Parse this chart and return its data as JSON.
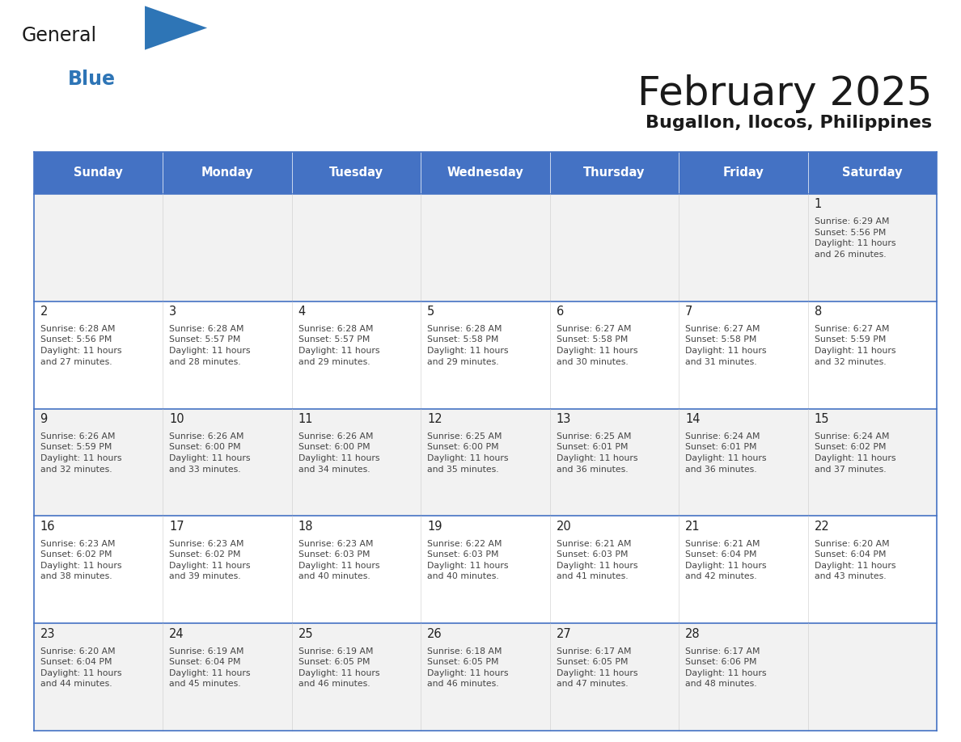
{
  "title": "February 2025",
  "subtitle": "Bugallon, Ilocos, Philippines",
  "days_of_week": [
    "Sunday",
    "Monday",
    "Tuesday",
    "Wednesday",
    "Thursday",
    "Friday",
    "Saturday"
  ],
  "header_bg": "#4472C4",
  "header_text": "#FFFFFF",
  "row_bg": [
    "#F2F2F2",
    "#FFFFFF",
    "#F2F2F2",
    "#FFFFFF",
    "#F2F2F2"
  ],
  "separator_color": "#4472C4",
  "cell_text_color": "#444444",
  "day_number_color": "#222222",
  "title_color": "#1a1a1a",
  "subtitle_color": "#1a1a1a",
  "logo_general_color": "#1a1a1a",
  "logo_blue_color": "#2E75B6",
  "calendar": [
    [
      {
        "day": null,
        "info": null
      },
      {
        "day": null,
        "info": null
      },
      {
        "day": null,
        "info": null
      },
      {
        "day": null,
        "info": null
      },
      {
        "day": null,
        "info": null
      },
      {
        "day": null,
        "info": null
      },
      {
        "day": 1,
        "info": "Sunrise: 6:29 AM\nSunset: 5:56 PM\nDaylight: 11 hours\nand 26 minutes."
      }
    ],
    [
      {
        "day": 2,
        "info": "Sunrise: 6:28 AM\nSunset: 5:56 PM\nDaylight: 11 hours\nand 27 minutes."
      },
      {
        "day": 3,
        "info": "Sunrise: 6:28 AM\nSunset: 5:57 PM\nDaylight: 11 hours\nand 28 minutes."
      },
      {
        "day": 4,
        "info": "Sunrise: 6:28 AM\nSunset: 5:57 PM\nDaylight: 11 hours\nand 29 minutes."
      },
      {
        "day": 5,
        "info": "Sunrise: 6:28 AM\nSunset: 5:58 PM\nDaylight: 11 hours\nand 29 minutes."
      },
      {
        "day": 6,
        "info": "Sunrise: 6:27 AM\nSunset: 5:58 PM\nDaylight: 11 hours\nand 30 minutes."
      },
      {
        "day": 7,
        "info": "Sunrise: 6:27 AM\nSunset: 5:58 PM\nDaylight: 11 hours\nand 31 minutes."
      },
      {
        "day": 8,
        "info": "Sunrise: 6:27 AM\nSunset: 5:59 PM\nDaylight: 11 hours\nand 32 minutes."
      }
    ],
    [
      {
        "day": 9,
        "info": "Sunrise: 6:26 AM\nSunset: 5:59 PM\nDaylight: 11 hours\nand 32 minutes."
      },
      {
        "day": 10,
        "info": "Sunrise: 6:26 AM\nSunset: 6:00 PM\nDaylight: 11 hours\nand 33 minutes."
      },
      {
        "day": 11,
        "info": "Sunrise: 6:26 AM\nSunset: 6:00 PM\nDaylight: 11 hours\nand 34 minutes."
      },
      {
        "day": 12,
        "info": "Sunrise: 6:25 AM\nSunset: 6:00 PM\nDaylight: 11 hours\nand 35 minutes."
      },
      {
        "day": 13,
        "info": "Sunrise: 6:25 AM\nSunset: 6:01 PM\nDaylight: 11 hours\nand 36 minutes."
      },
      {
        "day": 14,
        "info": "Sunrise: 6:24 AM\nSunset: 6:01 PM\nDaylight: 11 hours\nand 36 minutes."
      },
      {
        "day": 15,
        "info": "Sunrise: 6:24 AM\nSunset: 6:02 PM\nDaylight: 11 hours\nand 37 minutes."
      }
    ],
    [
      {
        "day": 16,
        "info": "Sunrise: 6:23 AM\nSunset: 6:02 PM\nDaylight: 11 hours\nand 38 minutes."
      },
      {
        "day": 17,
        "info": "Sunrise: 6:23 AM\nSunset: 6:02 PM\nDaylight: 11 hours\nand 39 minutes."
      },
      {
        "day": 18,
        "info": "Sunrise: 6:23 AM\nSunset: 6:03 PM\nDaylight: 11 hours\nand 40 minutes."
      },
      {
        "day": 19,
        "info": "Sunrise: 6:22 AM\nSunset: 6:03 PM\nDaylight: 11 hours\nand 40 minutes."
      },
      {
        "day": 20,
        "info": "Sunrise: 6:21 AM\nSunset: 6:03 PM\nDaylight: 11 hours\nand 41 minutes."
      },
      {
        "day": 21,
        "info": "Sunrise: 6:21 AM\nSunset: 6:04 PM\nDaylight: 11 hours\nand 42 minutes."
      },
      {
        "day": 22,
        "info": "Sunrise: 6:20 AM\nSunset: 6:04 PM\nDaylight: 11 hours\nand 43 minutes."
      }
    ],
    [
      {
        "day": 23,
        "info": "Sunrise: 6:20 AM\nSunset: 6:04 PM\nDaylight: 11 hours\nand 44 minutes."
      },
      {
        "day": 24,
        "info": "Sunrise: 6:19 AM\nSunset: 6:04 PM\nDaylight: 11 hours\nand 45 minutes."
      },
      {
        "day": 25,
        "info": "Sunrise: 6:19 AM\nSunset: 6:05 PM\nDaylight: 11 hours\nand 46 minutes."
      },
      {
        "day": 26,
        "info": "Sunrise: 6:18 AM\nSunset: 6:05 PM\nDaylight: 11 hours\nand 46 minutes."
      },
      {
        "day": 27,
        "info": "Sunrise: 6:17 AM\nSunset: 6:05 PM\nDaylight: 11 hours\nand 47 minutes."
      },
      {
        "day": 28,
        "info": "Sunrise: 6:17 AM\nSunset: 6:06 PM\nDaylight: 11 hours\nand 48 minutes."
      },
      {
        "day": null,
        "info": null
      }
    ]
  ]
}
